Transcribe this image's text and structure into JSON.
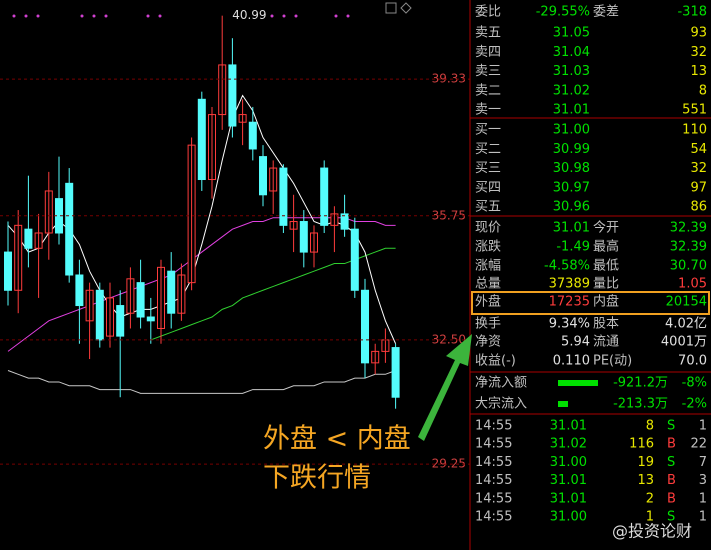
{
  "chart": {
    "type": "candlestick",
    "ylim": [
      27.0,
      41.4
    ],
    "yticks": [
      29.25,
      {
        "value": 32.5,
        "label": "32.50"
      },
      35.75,
      39.33
    ],
    "candles": [
      [
        34.8,
        35.6,
        33.4,
        33.8
      ],
      [
        33.8,
        35.9,
        33.2,
        35.5
      ],
      [
        35.4,
        36.8,
        34.4,
        34.9
      ],
      [
        34.9,
        35.8,
        33.6,
        35.3
      ],
      [
        35.3,
        36.9,
        34.6,
        36.4
      ],
      [
        36.2,
        37.3,
        35.0,
        35.3
      ],
      [
        36.6,
        37.0,
        34.0,
        34.2
      ],
      [
        34.2,
        34.6,
        32.4,
        33.4
      ],
      [
        33.0,
        34.0,
        32.0,
        33.8
      ],
      [
        33.8,
        34.0,
        32.3,
        32.5
      ],
      [
        32.6,
        34.0,
        32.3,
        33.6
      ],
      [
        33.4,
        33.8,
        31.0,
        32.6
      ],
      [
        33.2,
        34.4,
        32.8,
        34.1
      ],
      [
        34.0,
        34.6,
        32.8,
        33.1
      ],
      [
        33.1,
        33.6,
        32.4,
        33.0
      ],
      [
        32.8,
        34.6,
        32.4,
        34.4
      ],
      [
        34.3,
        34.8,
        32.8,
        33.2
      ],
      [
        33.2,
        34.5,
        33.0,
        34.2
      ],
      [
        34.0,
        37.8,
        33.8,
        37.6
      ],
      [
        38.8,
        39.0,
        36.4,
        36.7
      ],
      [
        36.7,
        38.6,
        36.2,
        38.4
      ],
      [
        38.4,
        40.99,
        38.0,
        39.7
      ],
      [
        39.7,
        40.4,
        37.8,
        38.1
      ],
      [
        38.2,
        38.8,
        37.6,
        38.4
      ],
      [
        38.2,
        38.6,
        37.2,
        37.5
      ],
      [
        37.3,
        37.6,
        36.0,
        36.3
      ],
      [
        36.4,
        37.2,
        35.8,
        37.0
      ],
      [
        37.0,
        37.1,
        35.3,
        35.5
      ],
      [
        35.4,
        36.3,
        34.8,
        35.6
      ],
      [
        35.6,
        35.9,
        34.4,
        34.8
      ],
      [
        34.8,
        35.5,
        34.4,
        35.3
      ],
      [
        37.0,
        37.2,
        35.3,
        35.5
      ],
      [
        35.5,
        36.0,
        34.8,
        35.8
      ],
      [
        35.8,
        36.3,
        35.2,
        35.4
      ],
      [
        35.4,
        35.7,
        33.6,
        33.8
      ],
      [
        33.8,
        34.1,
        31.5,
        31.9
      ],
      [
        31.9,
        32.4,
        31.6,
        32.2
      ],
      [
        32.2,
        32.8,
        31.9,
        32.5
      ],
      [
        32.3,
        32.4,
        30.7,
        31.0
      ]
    ],
    "lines": [
      {
        "color": "#ffffff",
        "values": [
          35.5,
          35.2,
          34.8,
          34.9,
          35.3,
          35.6,
          35.4,
          35.0,
          34.3,
          33.8,
          33.4,
          33.1,
          33.2,
          33.3,
          33.3,
          33.4,
          33.5,
          33.6,
          34.1,
          35.0,
          36.0,
          37.2,
          38.3,
          38.9,
          38.5,
          37.8,
          37.4,
          37.0,
          36.6,
          36.1,
          35.6,
          35.5,
          35.6,
          35.5,
          35.3,
          34.8,
          33.8,
          33.0,
          32.4
        ]
      },
      {
        "color": "#e040e0",
        "values": [
          32.2,
          32.4,
          32.6,
          32.8,
          33.0,
          33.1,
          33.2,
          33.3,
          33.4,
          33.5,
          33.6,
          33.7,
          33.8,
          33.9,
          34.0,
          34.1,
          34.2,
          34.4,
          34.6,
          34.8,
          35.0,
          35.2,
          35.4,
          35.5,
          35.6,
          35.6,
          35.7,
          35.7,
          35.7,
          35.7,
          35.7,
          35.7,
          35.7,
          35.7,
          35.6,
          35.6,
          35.6,
          35.5,
          35.5
        ]
      },
      {
        "color": "#30d030",
        "values": [
          null,
          null,
          null,
          null,
          null,
          null,
          null,
          null,
          null,
          null,
          null,
          null,
          null,
          null,
          32.5,
          32.6,
          32.7,
          32.8,
          32.9,
          33.0,
          33.1,
          33.3,
          33.4,
          33.6,
          33.7,
          33.8,
          33.9,
          34.0,
          34.1,
          34.2,
          34.3,
          34.4,
          34.5,
          34.5,
          34.6,
          34.7,
          34.8,
          34.9,
          34.9
        ]
      },
      {
        "color": "#c8c8c8",
        "values": [
          31.7,
          31.6,
          31.5,
          31.5,
          31.4,
          31.4,
          31.3,
          31.3,
          31.3,
          31.2,
          31.2,
          31.2,
          31.2,
          31.1,
          31.1,
          31.1,
          31.1,
          31.1,
          31.1,
          31.1,
          31.1,
          31.1,
          31.1,
          31.1,
          31.2,
          31.2,
          31.2,
          31.2,
          31.3,
          31.3,
          31.3,
          31.4,
          31.4,
          31.4,
          31.5,
          31.5,
          31.6,
          31.6,
          31.7
        ]
      }
    ]
  },
  "order_book": {
    "ratio": [
      "委比",
      "-29.55%",
      "委差",
      "-318"
    ],
    "asks": [
      [
        "卖五",
        "31.05",
        "93"
      ],
      [
        "卖四",
        "31.04",
        "32"
      ],
      [
        "卖三",
        "31.03",
        "13"
      ],
      [
        "卖二",
        "31.02",
        "8"
      ],
      [
        "卖一",
        "31.01",
        "551"
      ]
    ],
    "bids": [
      [
        "买一",
        "31.00",
        "110"
      ],
      [
        "买二",
        "30.99",
        "54"
      ],
      [
        "买三",
        "30.98",
        "32"
      ],
      [
        "买四",
        "30.97",
        "97"
      ],
      [
        "买五",
        "30.96",
        "86"
      ]
    ]
  },
  "stats": [
    [
      "现价",
      "31.01",
      "今开",
      "32.39"
    ],
    [
      "涨跌",
      "-1.49",
      "最高",
      "32.39"
    ],
    [
      "涨幅",
      "-4.58%",
      "最低",
      "30.70"
    ],
    [
      "总量",
      "37389",
      "量比",
      "1.05"
    ],
    [
      "外盘",
      "17235",
      "内盘",
      "20154"
    ],
    [
      "换手",
      "9.34%",
      "股本",
      "4.02亿"
    ],
    [
      "净资",
      "5.94",
      "流通",
      "4001万"
    ],
    [
      "收益(-)",
      "0.110",
      "PE(动)",
      "70.0"
    ]
  ],
  "flows": [
    [
      "净流入额",
      "-921.2万",
      "-8%"
    ],
    [
      "大宗流入",
      "-213.3万",
      "-2%"
    ]
  ],
  "trades": [
    [
      "14:55",
      "31.01",
      "8",
      "S",
      "1"
    ],
    [
      "14:55",
      "31.02",
      "116",
      "B",
      "22"
    ],
    [
      "14:55",
      "31.00",
      "19",
      "S",
      "7"
    ],
    [
      "14:55",
      "31.01",
      "13",
      "B",
      "3"
    ],
    [
      "14:55",
      "31.01",
      "2",
      "B",
      "1"
    ],
    [
      "14:55",
      "31.00",
      "1",
      "S",
      "1"
    ]
  ],
  "annotation": {
    "line1": "外盘 < 内盘",
    "line2": "下跌行情"
  },
  "watermark": "@投资论财"
}
